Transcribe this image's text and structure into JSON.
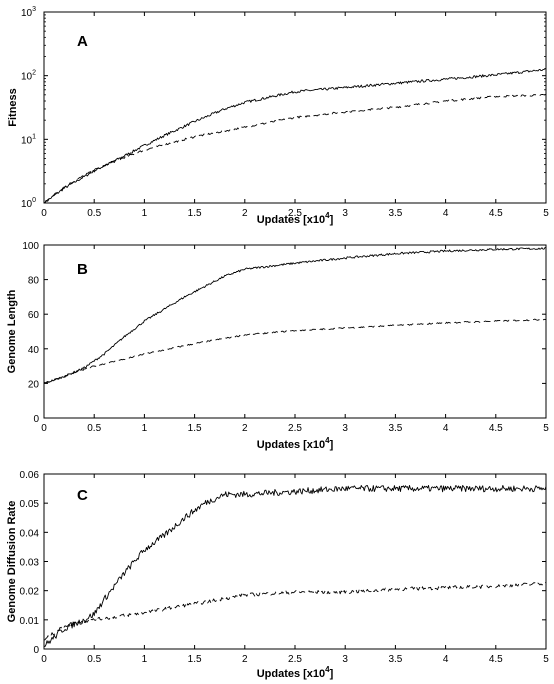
{
  "chart_data": [
    {
      "type": "line",
      "panel_label": "A",
      "xlabel": "Updates  [x10",
      "xlabel_exp": "4",
      "xlabel_close": "]",
      "ylabel": "Fitness",
      "xlim": [
        0,
        5
      ],
      "ylim": [
        1,
        1000
      ],
      "yscale": "log",
      "xticks": [
        0,
        0.5,
        1,
        1.5,
        2,
        2.5,
        3,
        3.5,
        4,
        4.5,
        5
      ],
      "yticks": [
        {
          "value": 1,
          "base": "10",
          "exp": "0"
        },
        {
          "value": 10,
          "base": "10",
          "exp": "1"
        },
        {
          "value": 100,
          "base": "10",
          "exp": "2"
        },
        {
          "value": 1000,
          "base": "10",
          "exp": "3"
        }
      ],
      "series": [
        {
          "style": "solid",
          "noise": 0.04,
          "x": [
            0,
            0.2,
            0.5,
            0.8,
            1.0,
            1.2,
            1.5,
            1.8,
            2.0,
            2.5,
            3.0,
            3.5,
            4.0,
            4.5,
            5.0
          ],
          "y": [
            1,
            1.7,
            3.2,
            5.5,
            8,
            11.5,
            19,
            30,
            38,
            56,
            65,
            76,
            88,
            103,
            125
          ]
        },
        {
          "style": "dashed",
          "noise": 0.03,
          "x": [
            0,
            0.2,
            0.5,
            0.8,
            1.0,
            1.5,
            2.0,
            2.5,
            3.0,
            3.5,
            4.0,
            4.5,
            5.0
          ],
          "y": [
            1,
            1.8,
            3.3,
            5.2,
            6.8,
            11,
            15.5,
            22,
            27,
            32,
            40,
            47,
            50
          ]
        }
      ]
    },
    {
      "type": "line",
      "panel_label": "B",
      "xlabel": "Updates [x10",
      "xlabel_exp": "4",
      "xlabel_close": "]",
      "ylabel": "Genome Length",
      "xlim": [
        0,
        5
      ],
      "ylim": [
        0,
        100
      ],
      "yscale": "linear",
      "xticks": [
        0,
        0.5,
        1,
        1.5,
        2,
        2.5,
        3,
        3.5,
        4,
        4.5,
        5
      ],
      "yticks": [
        0,
        20,
        40,
        60,
        80,
        100
      ],
      "series": [
        {
          "style": "solid",
          "noise": 0.6,
          "x": [
            0,
            0.2,
            0.4,
            0.6,
            0.8,
            1.0,
            1.2,
            1.4,
            1.6,
            1.8,
            2.0,
            2.5,
            3.0,
            3.5,
            4.0,
            4.5,
            5.0
          ],
          "y": [
            20,
            24,
            29,
            37,
            47,
            56,
            63,
            70,
            76,
            82,
            86,
            89.5,
            92.5,
            95,
            96.5,
            97.5,
            98
          ]
        },
        {
          "style": "dashed",
          "noise": 0.4,
          "x": [
            0,
            0.25,
            0.5,
            0.8,
            1.0,
            1.5,
            2.0,
            2.5,
            3.0,
            3.5,
            4.0,
            4.5,
            5.0
          ],
          "y": [
            20,
            25,
            30,
            34,
            37,
            43,
            48,
            50.5,
            52,
            53.5,
            55,
            56,
            57
          ]
        }
      ]
    },
    {
      "type": "line",
      "panel_label": "C",
      "xlabel": "Updates [x10",
      "xlabel_exp": "4",
      "xlabel_close": "]",
      "ylabel": "Genome Diffusion Rate",
      "xlim": [
        0,
        5
      ],
      "ylim": [
        0,
        0.06
      ],
      "yscale": "linear",
      "xticks": [
        0,
        0.5,
        1,
        1.5,
        2,
        2.5,
        3,
        3.5,
        4,
        4.5,
        5
      ],
      "yticks": [
        0,
        0.01,
        0.02,
        0.03,
        0.04,
        0.05,
        0.06
      ],
      "series": [
        {
          "style": "solid",
          "noise": 0.0011,
          "x": [
            0,
            0.2,
            0.4,
            0.5,
            0.6,
            0.8,
            1.0,
            1.2,
            1.4,
            1.6,
            1.8,
            2.0,
            2.5,
            3.0,
            3.5,
            4.0,
            4.5,
            5.0
          ],
          "y": [
            0.001,
            0.007,
            0.01,
            0.012,
            0.017,
            0.026,
            0.034,
            0.039,
            0.045,
            0.05,
            0.053,
            0.053,
            0.054,
            0.055,
            0.055,
            0.055,
            0.055,
            0.055
          ]
        },
        {
          "style": "dashed",
          "noise": 0.0006,
          "x": [
            0,
            0.2,
            0.4,
            0.6,
            0.8,
            1.0,
            1.5,
            2.0,
            2.5,
            3.0,
            3.5,
            4.0,
            4.5,
            5.0
          ],
          "y": [
            0.003,
            0.008,
            0.0095,
            0.0105,
            0.0115,
            0.0125,
            0.0155,
            0.0185,
            0.0195,
            0.0195,
            0.0205,
            0.021,
            0.0215,
            0.0225
          ]
        }
      ]
    }
  ]
}
